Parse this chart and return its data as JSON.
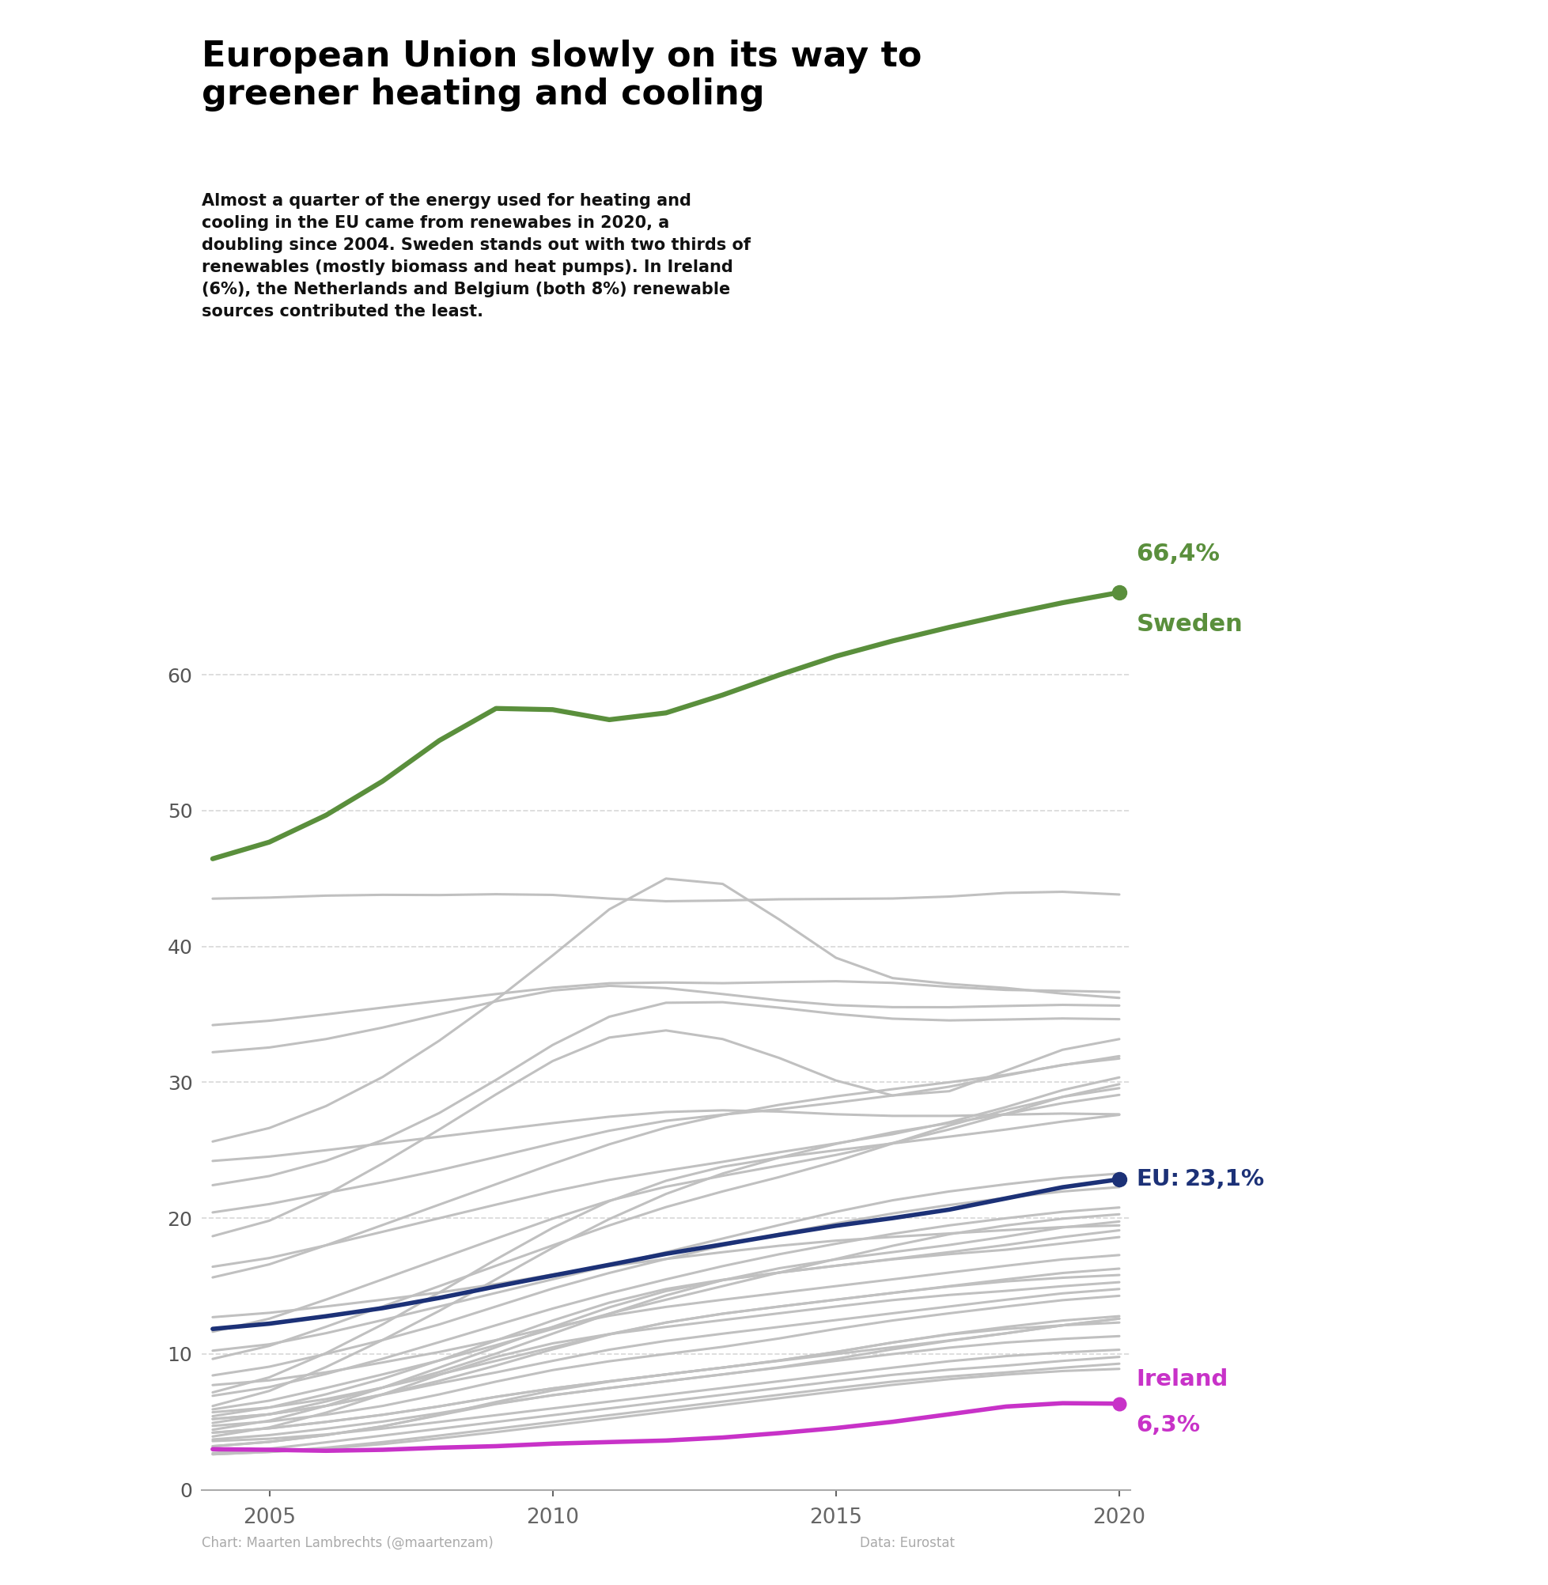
{
  "title": "European Union slowly on its way to\ngreener heating and cooling",
  "subtitle": "Almost a quarter of the energy used for heating and\ncooling in the EU came from renewabes in 2020, a\ndoubling since 2004. Sweden stands out with two thirds of\nrenewables (mostly biomass and heat pumps). In Ireland\n(6%), the Netherlands and Belgium (both 8%) renewable\nsources contributed the least.",
  "years": [
    2004,
    2005,
    2006,
    2007,
    2008,
    2009,
    2010,
    2011,
    2012,
    2013,
    2014,
    2015,
    2016,
    2017,
    2018,
    2019,
    2020
  ],
  "sweden": [
    46.0,
    47.5,
    49.5,
    52.0,
    55.0,
    59.0,
    57.5,
    56.0,
    57.0,
    58.5,
    60.0,
    61.5,
    62.5,
    63.5,
    64.5,
    65.2,
    66.4
  ],
  "eu": [
    11.7,
    12.2,
    12.8,
    13.3,
    14.1,
    15.0,
    15.8,
    16.5,
    17.5,
    18.0,
    18.8,
    19.5,
    20.0,
    20.5,
    21.5,
    22.3,
    23.1
  ],
  "ireland": [
    3.0,
    3.0,
    2.8,
    2.9,
    3.2,
    3.1,
    3.5,
    3.5,
    3.6,
    3.8,
    4.2,
    4.5,
    5.0,
    5.5,
    6.3,
    6.5,
    6.3
  ],
  "others": [
    [
      43.5,
      43.5,
      43.8,
      44.0,
      43.5,
      44.0,
      44.0,
      43.5,
      43.0,
      43.5,
      43.5,
      43.5,
      43.5,
      43.5,
      44.0,
      44.5,
      43.5
    ],
    [
      34.0,
      34.5,
      35.0,
      35.5,
      36.0,
      36.5,
      37.0,
      37.5,
      37.5,
      37.0,
      37.5,
      37.5,
      37.5,
      37.0,
      36.5,
      37.0,
      36.5
    ],
    [
      25.0,
      26.5,
      28.0,
      30.0,
      33.0,
      36.0,
      39.0,
      43.0,
      47.0,
      46.0,
      42.0,
      38.0,
      37.0,
      37.5,
      37.0,
      36.5,
      36.0
    ],
    [
      32.0,
      32.5,
      33.0,
      34.0,
      35.0,
      36.0,
      37.0,
      37.5,
      37.0,
      36.5,
      36.0,
      35.5,
      35.5,
      35.5,
      35.5,
      36.0,
      35.5
    ],
    [
      22.0,
      23.0,
      24.0,
      25.5,
      27.5,
      30.0,
      33.0,
      35.5,
      36.5,
      36.0,
      35.5,
      35.0,
      34.5,
      34.5,
      34.5,
      35.0,
      34.5
    ],
    [
      18.0,
      19.5,
      21.5,
      24.0,
      26.5,
      29.0,
      32.0,
      34.0,
      34.5,
      33.5,
      32.0,
      30.0,
      28.0,
      28.5,
      31.0,
      33.0,
      33.5
    ],
    [
      15.0,
      16.5,
      18.0,
      19.5,
      21.0,
      22.5,
      24.0,
      25.5,
      27.0,
      27.5,
      28.5,
      29.0,
      29.5,
      30.0,
      30.5,
      31.0,
      32.5
    ],
    [
      20.0,
      21.0,
      22.0,
      22.5,
      23.5,
      24.5,
      25.5,
      26.5,
      27.5,
      27.5,
      28.0,
      28.5,
      29.0,
      29.5,
      30.5,
      31.5,
      32.0
    ],
    [
      16.0,
      17.0,
      18.0,
      19.0,
      20.0,
      21.0,
      22.0,
      23.0,
      23.5,
      24.0,
      25.0,
      25.5,
      26.0,
      27.0,
      28.0,
      29.5,
      31.0
    ],
    [
      11.0,
      12.5,
      14.0,
      15.5,
      17.0,
      18.5,
      20.0,
      21.5,
      22.5,
      23.0,
      24.0,
      24.5,
      25.5,
      26.5,
      27.5,
      29.0,
      30.5
    ],
    [
      9.0,
      10.5,
      12.0,
      13.5,
      15.0,
      16.5,
      18.0,
      19.5,
      21.0,
      22.0,
      23.0,
      24.0,
      25.5,
      27.0,
      28.0,
      29.0,
      30.0
    ],
    [
      5.5,
      7.0,
      9.0,
      11.0,
      13.0,
      15.5,
      18.0,
      20.0,
      22.0,
      23.5,
      24.5,
      25.5,
      26.5,
      27.0,
      27.5,
      28.5,
      29.5
    ],
    [
      6.5,
      8.0,
      10.0,
      12.0,
      14.5,
      17.0,
      19.5,
      21.5,
      23.0,
      24.0,
      24.5,
      25.0,
      25.5,
      26.0,
      26.5,
      27.0,
      28.0
    ],
    [
      24.0,
      24.5,
      25.0,
      25.5,
      26.0,
      26.5,
      27.0,
      27.5,
      28.0,
      28.0,
      28.0,
      27.5,
      27.5,
      27.5,
      27.5,
      28.0,
      27.5
    ],
    [
      10.0,
      10.5,
      11.5,
      12.5,
      13.5,
      14.5,
      15.5,
      16.5,
      17.5,
      18.5,
      19.5,
      20.5,
      21.5,
      22.0,
      22.5,
      23.0,
      23.5
    ],
    [
      8.0,
      9.0,
      10.0,
      11.0,
      12.0,
      13.5,
      15.0,
      16.0,
      17.0,
      18.0,
      19.0,
      19.5,
      20.5,
      21.0,
      21.5,
      22.0,
      22.5
    ],
    [
      6.5,
      7.5,
      8.5,
      9.5,
      11.0,
      12.0,
      13.5,
      14.5,
      15.5,
      16.5,
      17.5,
      18.0,
      19.0,
      19.5,
      20.0,
      20.5,
      21.0
    ],
    [
      5.5,
      6.5,
      7.5,
      8.5,
      9.5,
      10.5,
      12.0,
      13.0,
      14.0,
      15.0,
      16.0,
      17.0,
      18.0,
      19.0,
      19.5,
      20.0,
      20.5
    ],
    [
      4.5,
      5.5,
      6.5,
      7.5,
      8.5,
      10.0,
      11.5,
      13.0,
      14.5,
      15.5,
      16.5,
      17.0,
      17.5,
      18.0,
      18.5,
      19.5,
      20.0
    ],
    [
      5.0,
      6.0,
      7.0,
      8.0,
      9.5,
      11.0,
      12.5,
      14.0,
      15.0,
      15.5,
      16.0,
      16.5,
      17.0,
      17.5,
      18.0,
      18.5,
      19.5
    ],
    [
      12.5,
      13.0,
      13.5,
      14.0,
      14.5,
      15.0,
      16.0,
      16.5,
      17.0,
      17.5,
      18.0,
      18.5,
      18.5,
      19.0,
      19.0,
      19.5,
      19.5
    ],
    [
      4.0,
      5.0,
      6.0,
      7.5,
      9.0,
      10.5,
      12.0,
      13.5,
      15.0,
      15.5,
      16.0,
      16.5,
      17.0,
      17.5,
      17.5,
      18.0,
      19.0
    ],
    [
      7.5,
      8.0,
      8.5,
      9.5,
      10.0,
      11.0,
      12.0,
      13.0,
      13.5,
      14.0,
      14.5,
      15.0,
      15.5,
      16.0,
      16.5,
      17.0,
      17.5
    ],
    [
      5.5,
      6.0,
      6.5,
      7.5,
      8.5,
      9.5,
      10.5,
      11.5,
      12.5,
      13.0,
      13.5,
      14.0,
      14.5,
      15.0,
      15.5,
      16.0,
      16.5
    ],
    [
      5.0,
      5.5,
      6.0,
      7.0,
      8.0,
      9.0,
      10.5,
      11.5,
      12.5,
      13.0,
      13.5,
      14.0,
      14.5,
      15.0,
      15.5,
      15.5,
      16.0
    ],
    [
      3.5,
      4.5,
      5.5,
      7.0,
      8.5,
      10.0,
      11.0,
      11.5,
      12.0,
      12.5,
      13.0,
      13.5,
      14.0,
      14.5,
      14.5,
      15.0,
      15.5
    ],
    [
      5.0,
      5.5,
      6.0,
      7.0,
      8.0,
      8.5,
      9.5,
      10.5,
      11.0,
      11.5,
      12.0,
      12.5,
      13.0,
      13.5,
      14.0,
      14.5,
      15.0
    ],
    [
      4.5,
      5.0,
      5.5,
      6.0,
      7.0,
      8.0,
      9.0,
      9.5,
      10.0,
      10.5,
      11.0,
      12.0,
      12.5,
      13.0,
      13.5,
      14.0,
      14.5
    ],
    [
      4.0,
      4.5,
      5.0,
      5.5,
      6.0,
      7.0,
      7.5,
      8.0,
      8.5,
      9.0,
      9.5,
      10.0,
      11.0,
      11.5,
      12.0,
      12.5,
      13.0
    ],
    [
      4.0,
      4.5,
      5.0,
      5.5,
      6.0,
      7.0,
      7.5,
      8.0,
      8.5,
      9.0,
      9.5,
      10.0,
      10.5,
      11.0,
      11.5,
      12.0,
      13.0
    ],
    [
      3.5,
      4.0,
      4.5,
      5.0,
      5.5,
      6.5,
      7.0,
      7.5,
      8.0,
      8.5,
      9.0,
      9.5,
      10.5,
      11.0,
      11.5,
      12.0,
      13.0
    ],
    [
      3.0,
      3.5,
      4.0,
      4.5,
      5.5,
      6.5,
      7.5,
      8.0,
      8.5,
      9.0,
      9.5,
      10.0,
      11.0,
      11.5,
      12.0,
      12.0,
      12.5
    ],
    [
      3.0,
      3.5,
      4.0,
      4.5,
      5.5,
      6.5,
      7.0,
      7.5,
      8.0,
      8.5,
      9.0,
      9.5,
      10.0,
      10.5,
      11.0,
      11.0,
      11.5
    ],
    [
      3.5,
      3.7,
      4.0,
      4.5,
      5.0,
      5.5,
      6.0,
      6.5,
      7.0,
      7.5,
      8.0,
      8.5,
      9.0,
      9.5,
      10.0,
      10.0,
      10.5
    ],
    [
      2.5,
      3.0,
      3.5,
      4.0,
      4.5,
      5.0,
      5.5,
      6.0,
      6.5,
      7.0,
      7.5,
      8.0,
      8.5,
      9.0,
      9.0,
      9.5,
      10.0
    ],
    [
      2.5,
      2.8,
      3.0,
      3.5,
      4.0,
      4.5,
      5.0,
      5.5,
      6.0,
      6.5,
      7.0,
      7.5,
      8.0,
      8.5,
      8.5,
      9.0,
      9.5
    ],
    [
      2.5,
      2.8,
      3.0,
      3.3,
      3.8,
      4.2,
      4.8,
      5.2,
      5.8,
      6.2,
      6.8,
      7.2,
      7.8,
      8.2,
      8.5,
      8.8,
      9.0
    ]
  ],
  "sweden_color": "#5a8f3c",
  "eu_color": "#1c3177",
  "ireland_color": "#c832c8",
  "other_color": "#c0c0c0",
  "background_color": "#ffffff",
  "title_fontsize": 32,
  "subtitle_fontsize": 15,
  "tick_fontsize": 18,
  "annotation_fontsize": 20,
  "ylim": [
    0,
    70
  ],
  "yticks": [
    0,
    10,
    20,
    30,
    40,
    50,
    60
  ],
  "xticks": [
    2005,
    2010,
    2015,
    2020
  ],
  "grid_color": "#d8d8d8",
  "footer_left": "Chart: Maarten Lambrechts (@maartenzam)",
  "footer_right": "Data: Eurostat"
}
